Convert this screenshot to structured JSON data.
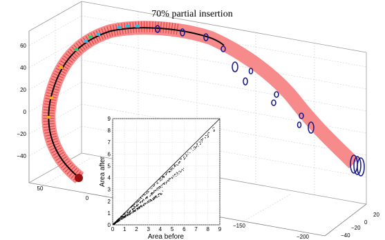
{
  "chart_data": [
    {
      "type": "3d-line",
      "title": "70% partial insertion",
      "z_ticks": [
        "60",
        "40",
        "20",
        "0",
        "−20",
        "−40"
      ],
      "x_ticks": [
        "50",
        "0"
      ],
      "y_ticks_bottom": [
        "−150",
        "−200"
      ],
      "y_ticks_right": [
        "20",
        "0",
        "−20",
        "−40"
      ],
      "grid": true,
      "colors": {
        "tube": "#f78a8a",
        "centerline": "#000000",
        "rings": "#1c1c8c",
        "markers_cyan": "#3fb6e0",
        "markers_orange": "#f5a623",
        "markers_green": "#3cc46a",
        "tip": "#9a1010",
        "hatch": "#d62a2a"
      }
    },
    {
      "type": "scatter",
      "title": "",
      "xlabel": "Area before",
      "ylabel": "Area after",
      "xlim": [
        0,
        9
      ],
      "ylim": [
        0,
        9
      ],
      "x_ticks": [
        "0",
        "1",
        "2",
        "3",
        "4",
        "5",
        "6",
        "7",
        "8",
        "9"
      ],
      "y_ticks": [
        "0",
        "1",
        "2",
        "3",
        "4",
        "5",
        "6",
        "7",
        "8",
        "9"
      ],
      "reference_line": "y = x",
      "branches": [
        {
          "slope": 0.95,
          "x_range": [
            0.1,
            8.6
          ]
        },
        {
          "slope": 0.8,
          "x_range": [
            0.1,
            6.0
          ]
        },
        {
          "slope": 0.65,
          "x_range": [
            0.1,
            4.2
          ]
        }
      ],
      "grid": true
    }
  ]
}
